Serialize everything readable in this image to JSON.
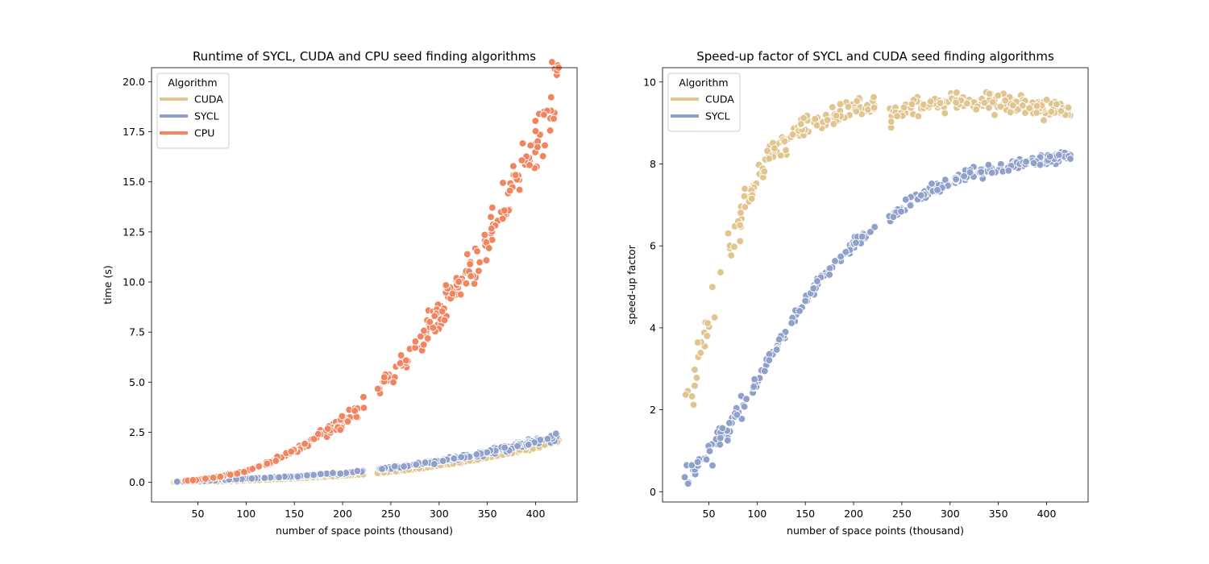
{
  "chart_data": [
    {
      "type": "scatter",
      "title": "Runtime of SYCL, CUDA and CPU seed finding algorithms",
      "xlabel": "number of space points (thousand)",
      "ylabel": "time (s)",
      "xlim": [
        2,
        443
      ],
      "ylim": [
        -0.98,
        20.7
      ],
      "xticks": [
        50,
        100,
        150,
        200,
        250,
        300,
        350,
        400
      ],
      "xtick_labels": [
        "50",
        "100",
        "150",
        "200",
        "250",
        "300",
        "350",
        "400"
      ],
      "yticks": [
        0,
        2.5,
        5,
        7.5,
        10,
        12.5,
        15,
        17.5,
        20
      ],
      "ytick_labels": [
        "0.0",
        "2.5",
        "5.0",
        "7.5",
        "10.0",
        "12.5",
        "15.0",
        "17.5",
        "20.0"
      ],
      "grid": false,
      "legend": {
        "title": "Algorithm",
        "placement": "upper-left",
        "entries": [
          "CUDA",
          "SYCL",
          "CPU"
        ]
      },
      "series": [
        {
          "name": "CUDA",
          "color": "#e0c58f",
          "x": [
            25,
            50,
            75,
            100,
            125,
            150,
            175,
            200,
            220,
            240,
            260,
            280,
            300,
            320,
            340,
            360,
            380,
            400,
            425
          ],
          "y": [
            0.01,
            0.02,
            0.05,
            0.09,
            0.14,
            0.2,
            0.26,
            0.33,
            0.39,
            0.47,
            0.58,
            0.7,
            0.83,
            0.97,
            1.13,
            1.33,
            1.53,
            1.75,
            2.1
          ]
        },
        {
          "name": "SYCL",
          "color": "#8fa0cb",
          "x": [
            25,
            50,
            75,
            100,
            125,
            150,
            175,
            200,
            220,
            240,
            260,
            280,
            300,
            320,
            340,
            360,
            380,
            400,
            425
          ],
          "y": [
            0.03,
            0.06,
            0.12,
            0.18,
            0.24,
            0.3,
            0.38,
            0.46,
            0.55,
            0.67,
            0.79,
            0.92,
            1.06,
            1.21,
            1.37,
            1.6,
            1.8,
            2.05,
            2.35
          ]
        },
        {
          "name": "CPU",
          "color": "#f0855f",
          "x": [
            25,
            50,
            75,
            100,
            125,
            150,
            175,
            200,
            220,
            240,
            260,
            280,
            300,
            320,
            340,
            360,
            380,
            400,
            425
          ],
          "y": [
            0.05,
            0.12,
            0.3,
            0.56,
            1.0,
            1.6,
            2.3,
            3.0,
            3.8,
            4.7,
            5.7,
            7.0,
            8.3,
            9.8,
            11.3,
            13.0,
            14.8,
            16.8,
            19.8
          ]
        }
      ]
    },
    {
      "type": "scatter",
      "title": "Speed-up factor of SYCL and CUDA seed finding algorithms",
      "xlabel": "number of space points (thousand)",
      "ylabel": "speed-up factor",
      "xlim": [
        2,
        443
      ],
      "ylim": [
        -0.25,
        10.35
      ],
      "xticks": [
        50,
        100,
        150,
        200,
        250,
        300,
        350,
        400
      ],
      "xtick_labels": [
        "50",
        "100",
        "150",
        "200",
        "250",
        "300",
        "350",
        "400"
      ],
      "yticks": [
        0,
        2,
        4,
        6,
        8,
        10
      ],
      "ytick_labels": [
        "0",
        "2",
        "4",
        "6",
        "8",
        "10"
      ],
      "grid": false,
      "legend": {
        "title": "Algorithm",
        "placement": "upper-left",
        "entries": [
          "CUDA",
          "SYCL"
        ]
      },
      "series": [
        {
          "name": "CUDA",
          "color": "#e0c58f",
          "x": [
            25,
            30,
            40,
            50,
            60,
            75,
            90,
            100,
            110,
            125,
            140,
            160,
            180,
            200,
            220,
            240,
            260,
            280,
            300,
            320,
            340,
            360,
            380,
            400,
            425
          ],
          "y": [
            2.5,
            2.1,
            3.3,
            4.2,
            5.0,
            6.3,
            7.0,
            7.6,
            8.1,
            8.5,
            8.8,
            9.0,
            9.2,
            9.35,
            9.4,
            9.2,
            9.4,
            9.5,
            9.55,
            9.45,
            9.5,
            9.5,
            9.45,
            9.35,
            9.25
          ]
        },
        {
          "name": "SYCL",
          "color": "#8fa0cb",
          "x": [
            25,
            30,
            40,
            50,
            60,
            75,
            90,
            100,
            110,
            125,
            140,
            160,
            180,
            200,
            220,
            240,
            260,
            280,
            300,
            320,
            340,
            360,
            380,
            400,
            425
          ],
          "y": [
            0.25,
            0.35,
            0.65,
            0.95,
            1.25,
            1.75,
            2.25,
            2.7,
            3.15,
            3.75,
            4.3,
            5.0,
            5.55,
            6.05,
            6.4,
            6.75,
            7.05,
            7.35,
            7.55,
            7.75,
            7.85,
            7.95,
            8.05,
            8.1,
            8.2
          ]
        }
      ]
    }
  ]
}
